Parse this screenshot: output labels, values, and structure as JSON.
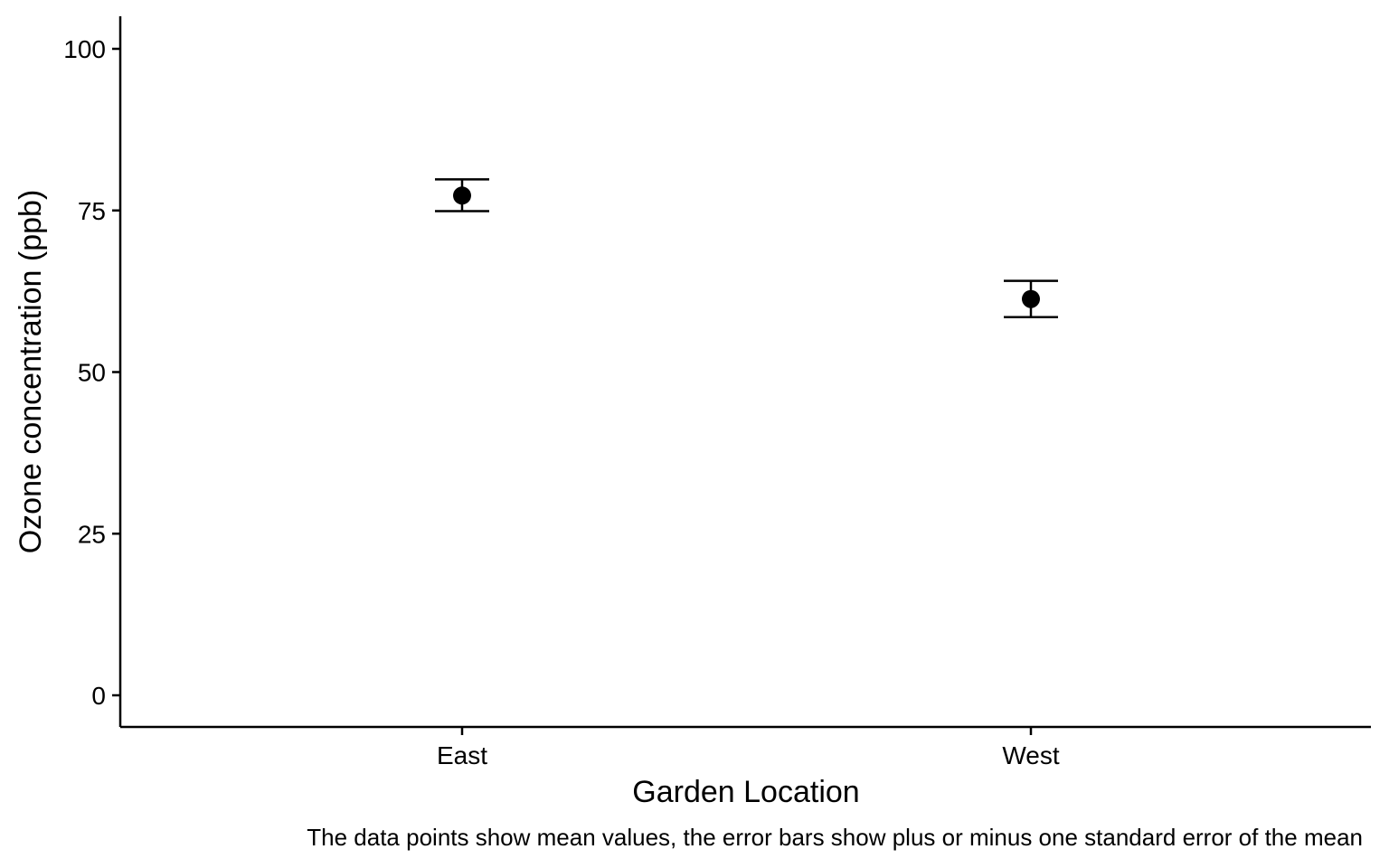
{
  "chart_data": {
    "type": "scatter",
    "categories": [
      "East",
      "West"
    ],
    "series": [
      {
        "values": [
          77.3,
          61.3
        ],
        "error_low": [
          74.9,
          58.5
        ],
        "error_high": [
          79.8,
          64.1
        ]
      }
    ],
    "xlabel": "Garden Location",
    "ylabel": "Ozone concentration (ppb)",
    "ylim": [
      -5,
      105
    ],
    "yticks": [
      0,
      25,
      50,
      75,
      100
    ],
    "grid": false,
    "legend": "none",
    "caption": "The data points show mean values, the error bars show plus or minus one standard error of the mean",
    "colors": {
      "axis": "#000000",
      "point": "#000000"
    }
  }
}
